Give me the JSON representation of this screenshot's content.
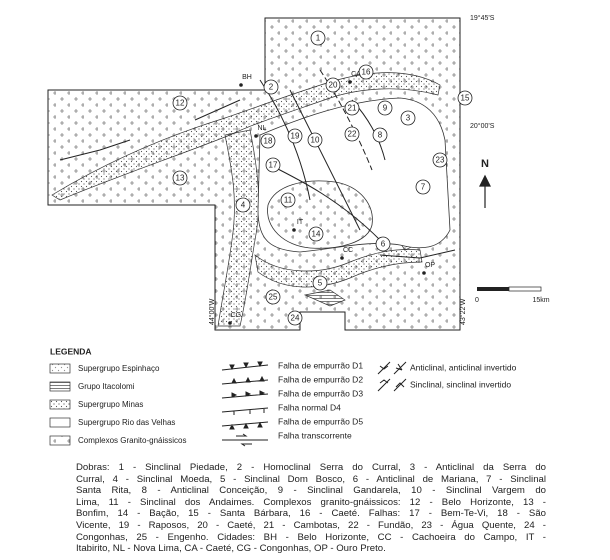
{
  "map": {
    "coordinates": [
      "19°45'S",
      "20°00'S",
      "44°00'W",
      "43°22'W"
    ],
    "numbered_units": [
      1,
      2,
      3,
      4,
      5,
      6,
      7,
      8,
      9,
      10,
      11,
      12,
      13,
      14,
      15,
      16,
      17,
      18,
      19,
      20,
      21,
      22,
      23,
      24,
      25
    ],
    "cities": [
      "BH",
      "CA",
      "NL",
      "IT",
      "CC",
      "OP",
      "CG"
    ],
    "north": "N",
    "scale": {
      "start": "0",
      "end": "15km"
    }
  },
  "legend": {
    "title": "LEGENDA",
    "units": [
      "Supergrupo Espinhaço",
      "Grupo Itacolomi",
      "Supergrupo Minas",
      "Supergrupo Rio das Velhas",
      "Complexos Granito-gnáissicos"
    ],
    "structures": [
      "Falha de empurrão D1",
      "Falha de empurrão D2",
      "Falha de empurrão D3",
      "Falha normal D4",
      "Falha de empurrão D5",
      "Falha transcorrente"
    ],
    "folds": [
      "Anticlinal, anticlinal invertido",
      "Sinclinal, sinclinal invertido"
    ]
  },
  "caption": [
    "Dobras: 1 - Sinclinal Piedade, 2 - Homoclinal Serra do Curral, 3 - Anticlinal da Serra do",
    "Curral, 4 - Sinclinal Moeda, 5 - Sinclinal Dom Bosco, 6 - Anticlinal de Mariana, 7 - Sinclinal",
    "Santa Rita, 8 - Anticlinal Conceição, 9 - Sinclinal Gandarela, 10 - Sinclinal Vargem do",
    "Lima, 11 - Sinclinal dos Andaimes. Complexos granito-gnáissicos: 12 - Belo Horizonte, 13 -",
    "Bonfim, 14 - Bação, 15 - Santa Bárbara, 16 - Caeté. Falhas: 17 - Bem-Te-Vi, 18 - São",
    "Vicente, 19 - Raposos, 20 - Caeté, 21 - Cambotas, 22 - Fundão, 23 - Água Quente, 24 -",
    "Congonhas, 25 - Engenho. Cidades: BH - Belo Horizonte, CC - Cachoeira do Campo, IT -",
    "Itabirito, NL - Nova Lima, CA - Caeté, CG - Congonhas, OP - Ouro Preto."
  ]
}
